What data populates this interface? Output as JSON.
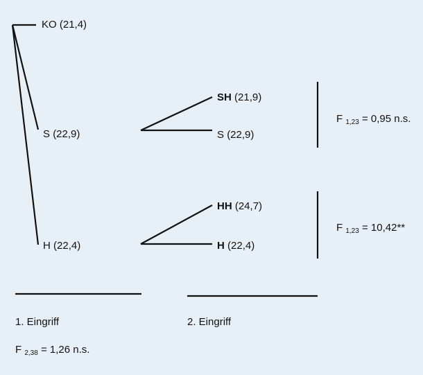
{
  "nodes": {
    "ko": {
      "name": "KO",
      "value": "(21,4)"
    },
    "s1": {
      "name": "S",
      "value": "(22,9)"
    },
    "h1": {
      "name": "H",
      "value": "(22,4)"
    },
    "sh": {
      "name": "SH",
      "value": "(21,9)"
    },
    "s2": {
      "name": "S",
      "value": "(22,9)"
    },
    "hh": {
      "name": "HH",
      "value": "(24,7)"
    },
    "h2": {
      "name": "H",
      "value": "(22,4)"
    }
  },
  "stats": {
    "top": {
      "prefix": "F",
      "df": "1,23",
      "rest": "= 0,95 n.s."
    },
    "bottom": {
      "prefix": "F",
      "df": "1,23",
      "rest": "= 10,42**"
    },
    "first": {
      "prefix": "F",
      "df": "2,38",
      "rest": "= 1,26 n.s."
    }
  },
  "phases": {
    "first": "1. Eingriff",
    "second": "2. Eingriff"
  },
  "colors": {
    "background": "#e8f0f7",
    "line": "#111111"
  }
}
